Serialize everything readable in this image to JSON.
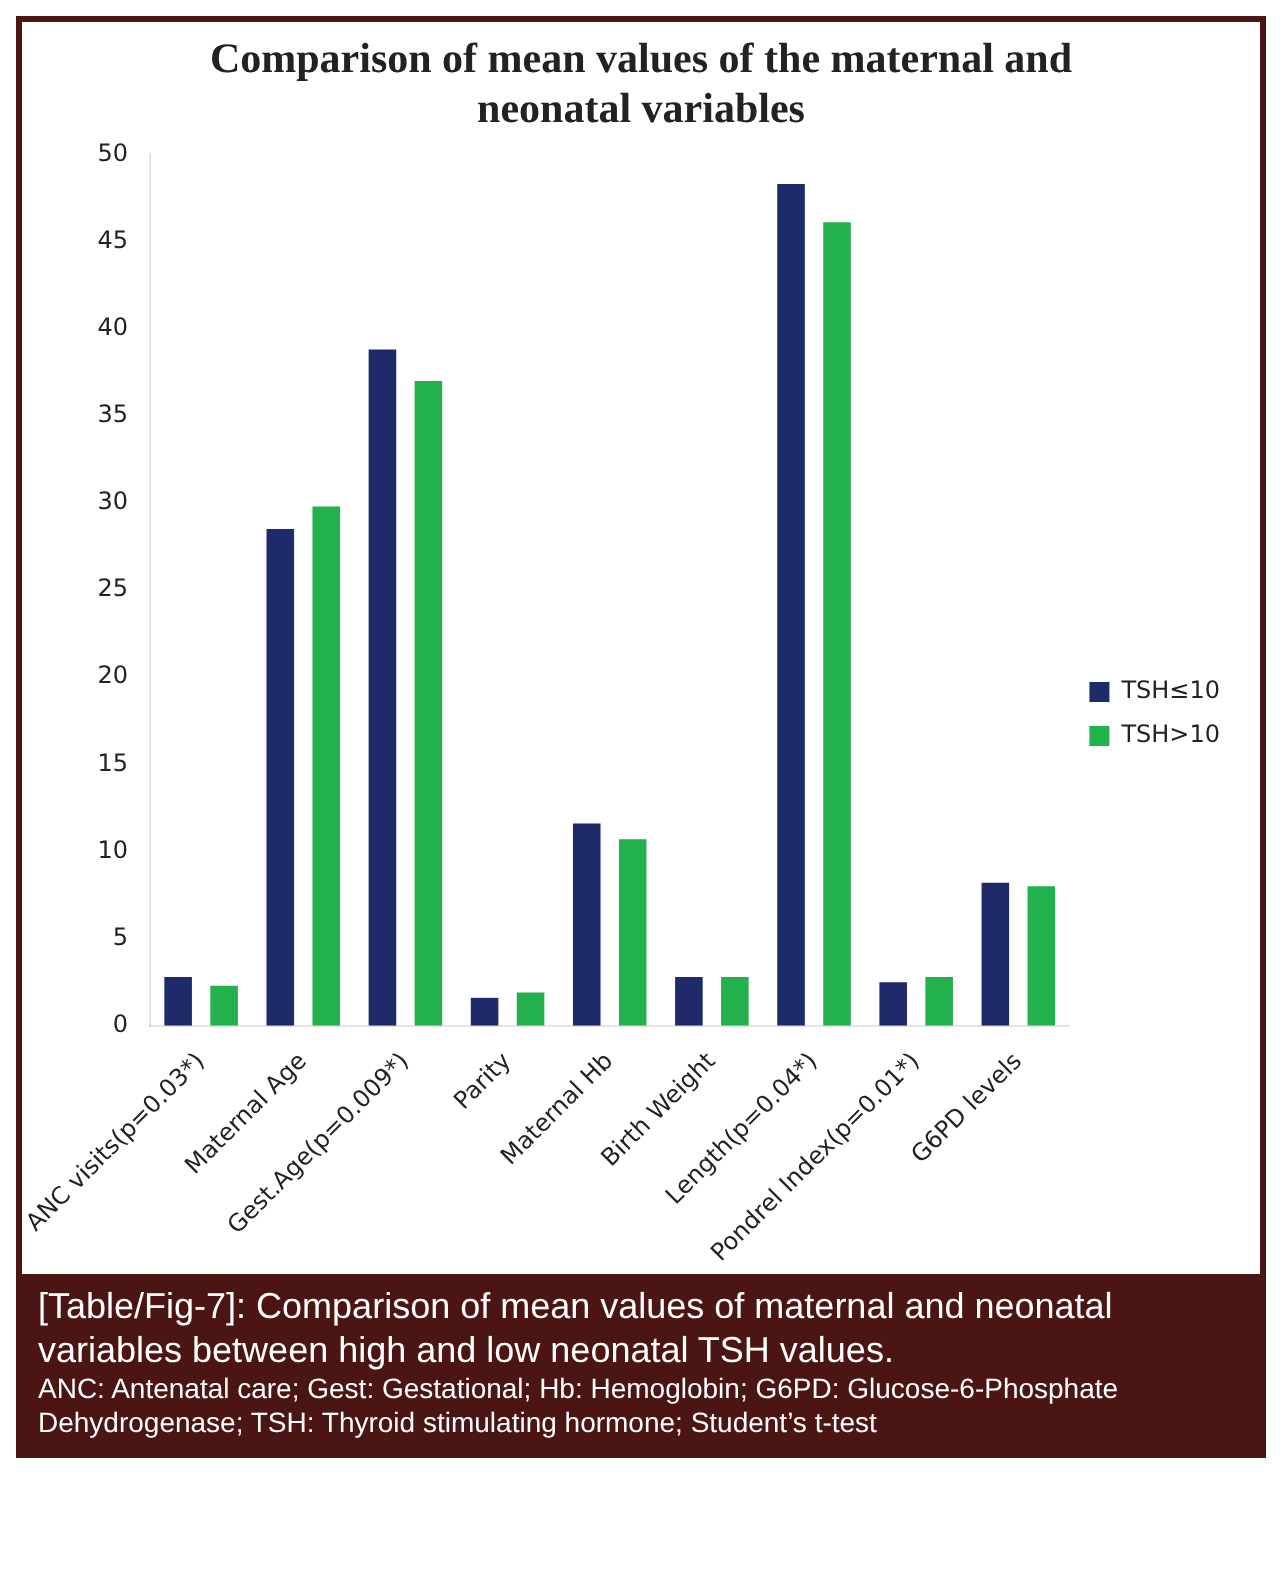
{
  "chart_data": {
    "type": "bar",
    "title": "Comparison of mean values of the maternal and neonatal variables",
    "categories": [
      "ANC visits(p=0.03*)",
      "Maternal Age",
      "Gest.Age(p=0.009*)",
      "Parity",
      "Maternal Hb",
      "Birth Weight",
      "Length(p=0.04*)",
      "Pondrel Index(p=0.01*)",
      "G6PD levels"
    ],
    "series": [
      {
        "name": "TSH≤10",
        "color": "#1f2a6b",
        "values": [
          2.8,
          28.5,
          38.8,
          1.6,
          11.6,
          2.8,
          48.3,
          2.5,
          8.2
        ]
      },
      {
        "name": "TSH>10",
        "color": "#22b14c",
        "values": [
          2.3,
          29.8,
          37.0,
          1.9,
          10.7,
          2.8,
          46.1,
          2.8,
          8.0
        ]
      }
    ],
    "ylim": [
      0,
      50
    ],
    "yticks": [
      0,
      5,
      10,
      15,
      20,
      25,
      30,
      35,
      40,
      45,
      50
    ],
    "grid": false,
    "legend": "right",
    "annotations": [
      "[Table/Fig-7]: Comparison of mean values of maternal and neonatal variables between high and low neonatal TSH values.",
      "ANC: Antenatal care; Gest: Gestational; Hb: Hemoglobin; G6PD: Glucose-6-Phosphate Dehydrogenase; TSH: Thyroid stimulating hormone; Student’s t-test"
    ]
  }
}
